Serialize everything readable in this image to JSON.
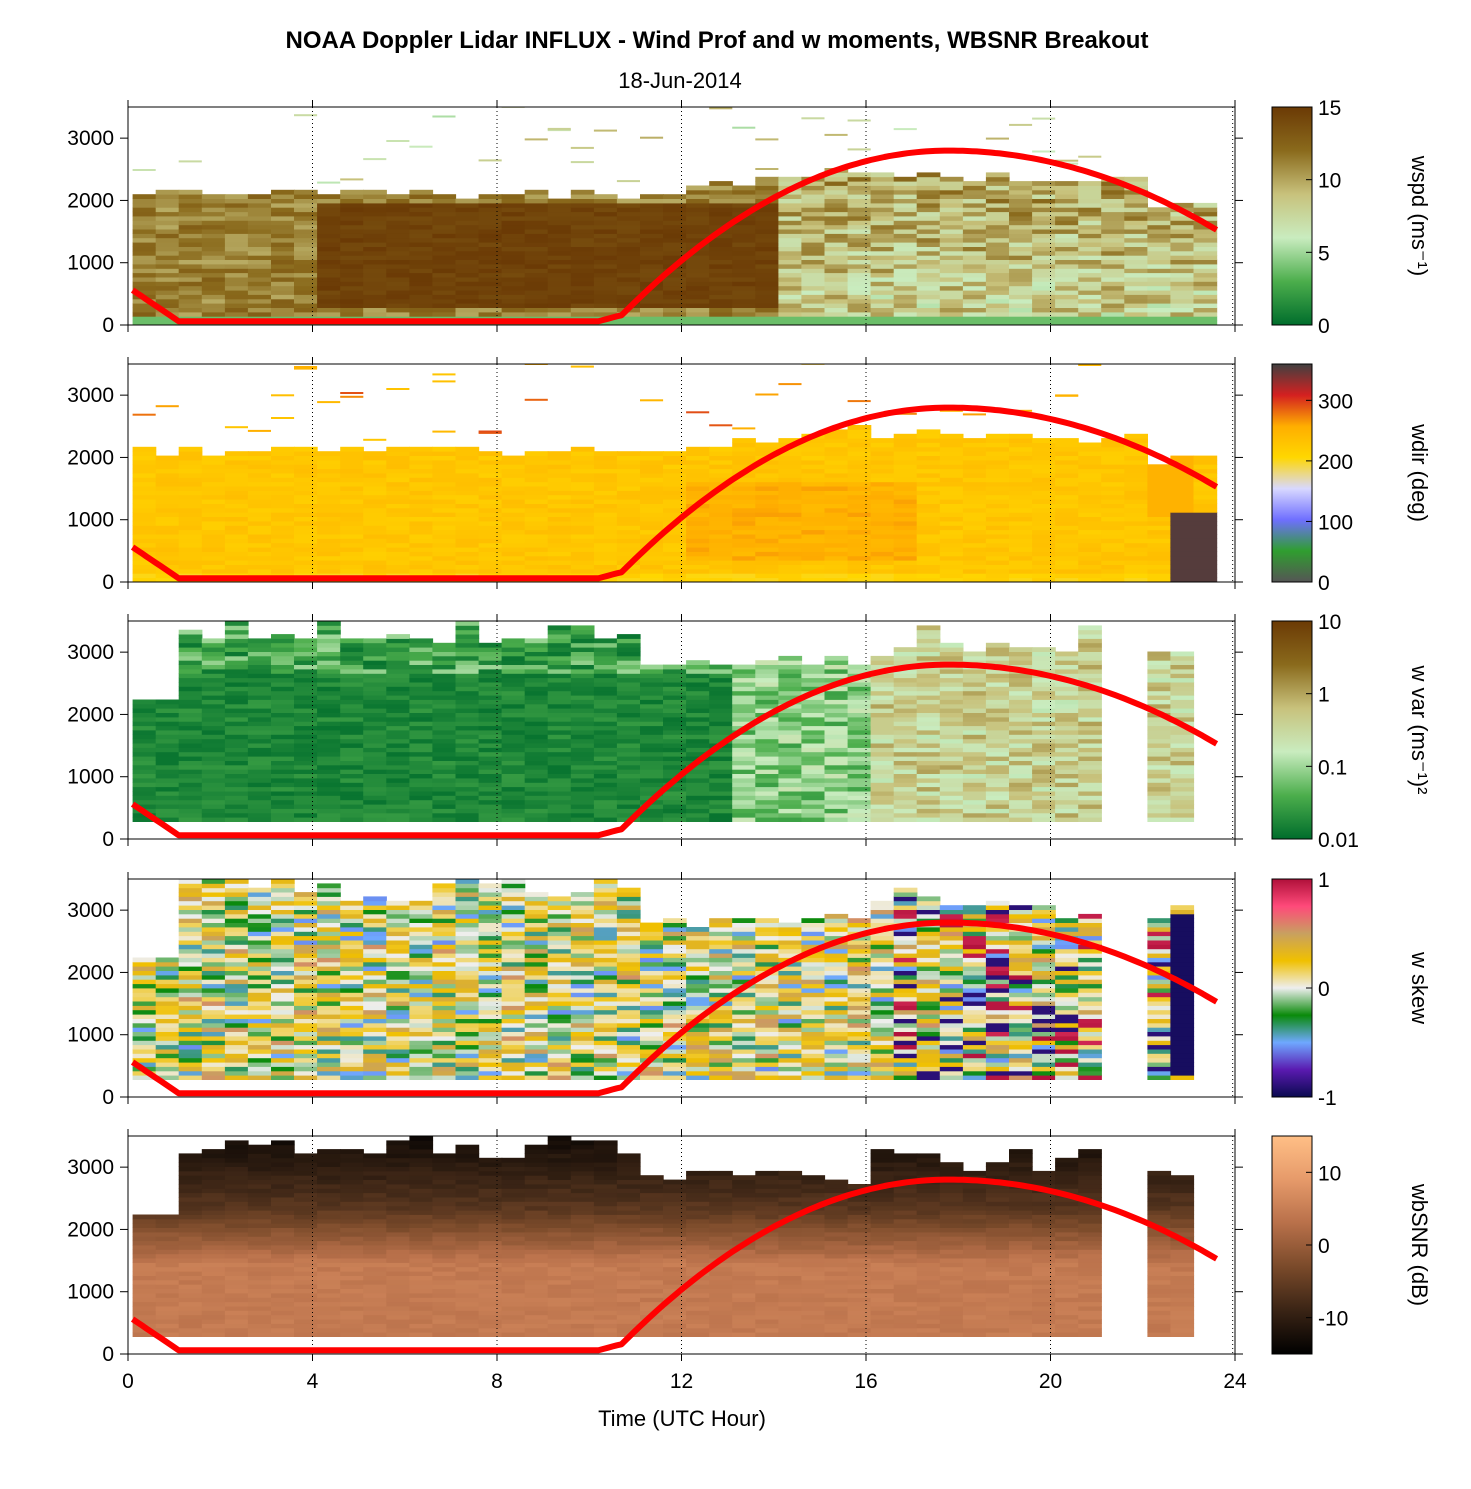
{
  "figure": {
    "title": "NOAA Doppler Lidar INFLUX - Wind Prof and w moments, WBSNR Breakout",
    "subtitle": "18-Jun-2014",
    "xlabel": "Time (UTC Hour)"
  },
  "chart_data": [
    {
      "type": "heatmap",
      "xlim": [
        0,
        24
      ],
      "ylim": [
        0,
        3500
      ],
      "x_ticks": [
        "0",
        "4",
        "8",
        "12",
        "16",
        "20",
        "24"
      ],
      "y_ticks": [
        "0",
        "1000",
        "2000",
        "3000"
      ],
      "colorbar": {
        "label": "wspd (ms⁻¹)",
        "ticks": [
          "0",
          "5",
          "10",
          "15"
        ],
        "range": [
          0,
          15
        ],
        "colors": [
          "#006d2c",
          "#4cae4c",
          "#c9ecbf",
          "#c8c27c",
          "#8a6a1c",
          "#6b3a05"
        ]
      },
      "series": [
        {
          "name": "sun elevation",
          "color": "#ff0000"
        }
      ]
    },
    {
      "type": "heatmap",
      "xlim": [
        0,
        24
      ],
      "ylim": [
        0,
        3500
      ],
      "x_ticks": [
        "0",
        "4",
        "8",
        "12",
        "16",
        "20",
        "24"
      ],
      "y_ticks": [
        "0",
        "1000",
        "2000",
        "3000"
      ],
      "colorbar": {
        "label": "wdir (deg)",
        "ticks": [
          "0",
          "100",
          "200",
          "300"
        ],
        "range": [
          0,
          360
        ],
        "colors": [
          "#555555",
          "#2f9e2f",
          "#6f6fff",
          "#d8d8ff",
          "#ffd700",
          "#ffae00",
          "#d42020",
          "#404040"
        ]
      },
      "series": [
        {
          "name": "sun elevation",
          "color": "#ff0000"
        }
      ]
    },
    {
      "type": "heatmap",
      "xlim": [
        0,
        24
      ],
      "ylim": [
        0,
        3500
      ],
      "x_ticks": [
        "0",
        "4",
        "8",
        "12",
        "16",
        "20",
        "24"
      ],
      "y_ticks": [
        "0",
        "1000",
        "2000",
        "3000"
      ],
      "colorbar": {
        "label": "w var (ms⁻¹)²",
        "ticks": [
          "0.01",
          "0.1",
          "1",
          "10"
        ],
        "range": [
          0.01,
          10
        ],
        "scale": "log",
        "colors": [
          "#006d2c",
          "#4cae4c",
          "#c9ecbf",
          "#c8c27c",
          "#8a6a1c",
          "#6b3a05"
        ]
      },
      "series": [
        {
          "name": "sun elevation",
          "color": "#ff0000"
        }
      ]
    },
    {
      "type": "heatmap",
      "xlim": [
        0,
        24
      ],
      "ylim": [
        0,
        3500
      ],
      "x_ticks": [
        "0",
        "4",
        "8",
        "12",
        "16",
        "20",
        "24"
      ],
      "y_ticks": [
        "0",
        "1000",
        "2000",
        "3000"
      ],
      "colorbar": {
        "label": "w skew",
        "ticks": [
          "-1",
          "0",
          "1"
        ],
        "range": [
          -1,
          1
        ],
        "colors": [
          "#0a0a50",
          "#5a1ab0",
          "#6fa8ff",
          "#0a8a0a",
          "#eeeeee",
          "#f0c000",
          "#c8a060",
          "#ff4a7a",
          "#b0103a"
        ]
      },
      "series": [
        {
          "name": "sun elevation",
          "color": "#ff0000"
        }
      ]
    },
    {
      "type": "heatmap",
      "xlim": [
        0,
        24
      ],
      "ylim": [
        0,
        3500
      ],
      "x_ticks": [
        "0",
        "4",
        "8",
        "12",
        "16",
        "20",
        "24"
      ],
      "y_ticks": [
        "0",
        "1000",
        "2000",
        "3000"
      ],
      "colorbar": {
        "label": "wbSNR (dB)",
        "ticks": [
          "-10",
          "0",
          "10"
        ],
        "range": [
          -15,
          15
        ],
        "colors": [
          "#000000",
          "#3a2415",
          "#7a4a2a",
          "#b8704a",
          "#e69a6a",
          "#ffbf86"
        ]
      },
      "series": [
        {
          "name": "sun elevation",
          "color": "#ff0000"
        }
      ]
    }
  ]
}
